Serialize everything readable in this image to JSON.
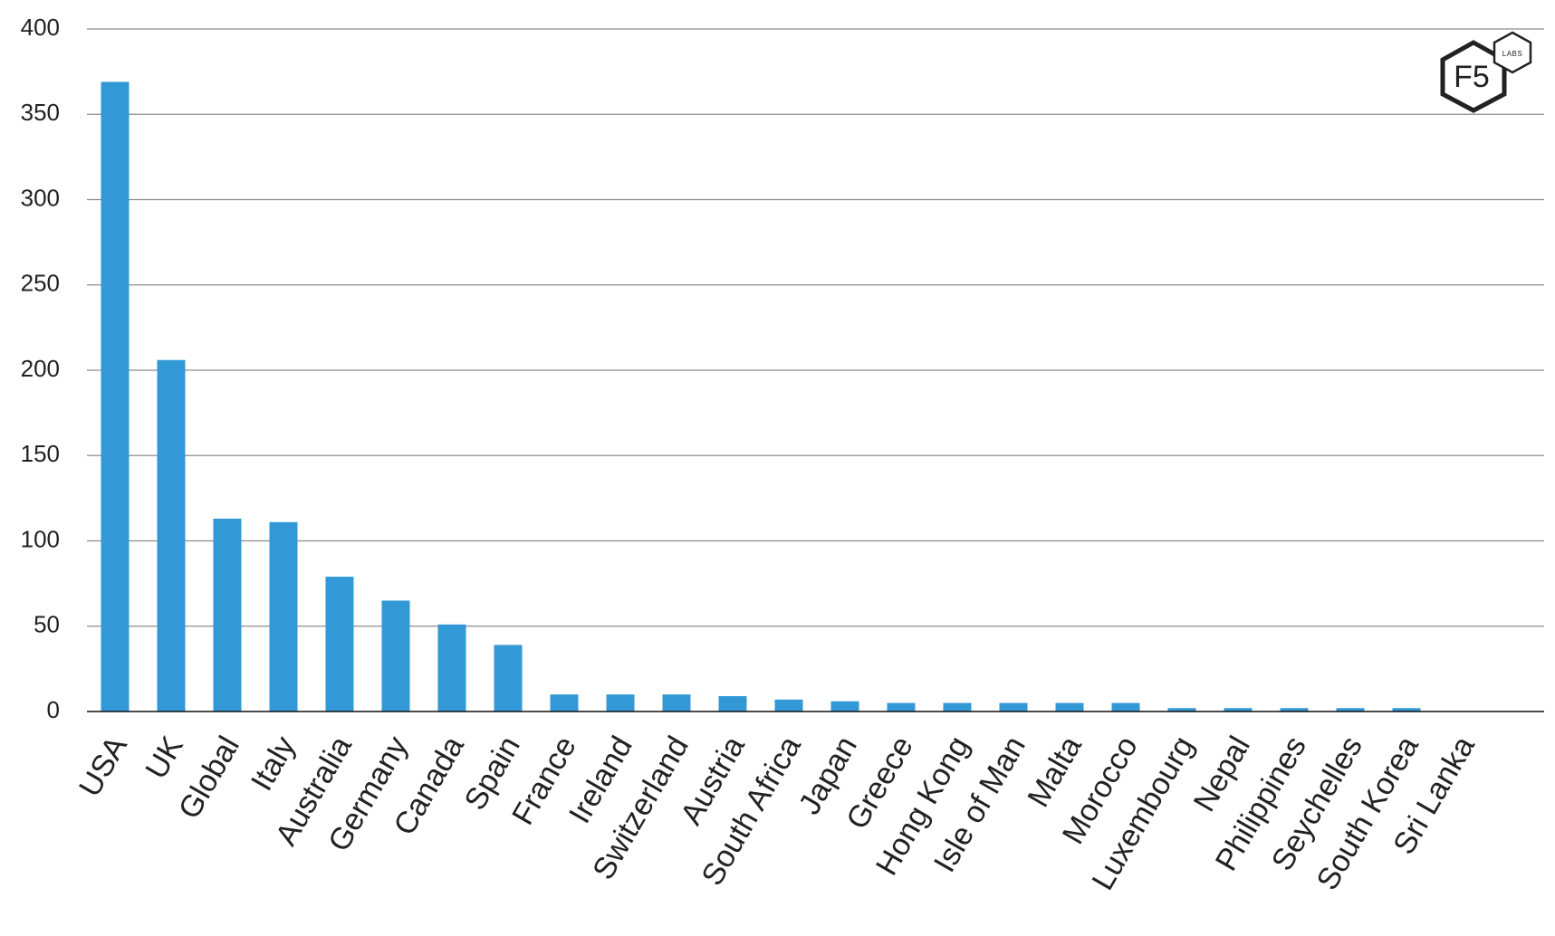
{
  "chart_data": {
    "type": "bar",
    "title": "",
    "xlabel": "",
    "ylabel": "",
    "ylim": [
      0,
      400
    ],
    "yticks": [
      0,
      50,
      100,
      150,
      200,
      250,
      300,
      350,
      400
    ],
    "ytick_labels": [
      "0",
      "50",
      "100",
      "150",
      "200",
      "250",
      "300",
      "350",
      "400"
    ],
    "grid": true,
    "legend": "none",
    "categories": [
      "USA",
      "UK",
      "Global",
      "Italy",
      "Australia",
      "Germany",
      "Canada",
      "Spain",
      "France",
      "Ireland",
      "Switzerland",
      "Austria",
      "South Africa",
      "Japan",
      "Greece",
      "Hong Kong",
      "Isle of Man",
      "Malta",
      "Morocco",
      "Luxembourg",
      "Nepal",
      "Philippines",
      "Seychelles",
      "South Korea",
      "Sri Lanka"
    ],
    "values": [
      369,
      206,
      113,
      111,
      79,
      65,
      51,
      39,
      10,
      10,
      10,
      9,
      7,
      6,
      5,
      5,
      5,
      5,
      5,
      2,
      2,
      2,
      2,
      2,
      0
    ],
    "bar_color": "#3399d6",
    "grid_color": "#8c8c8c",
    "axis_color": "#111111"
  },
  "logo": {
    "brand_text": "F5",
    "badge_text": "LABS",
    "color": "#222222"
  }
}
